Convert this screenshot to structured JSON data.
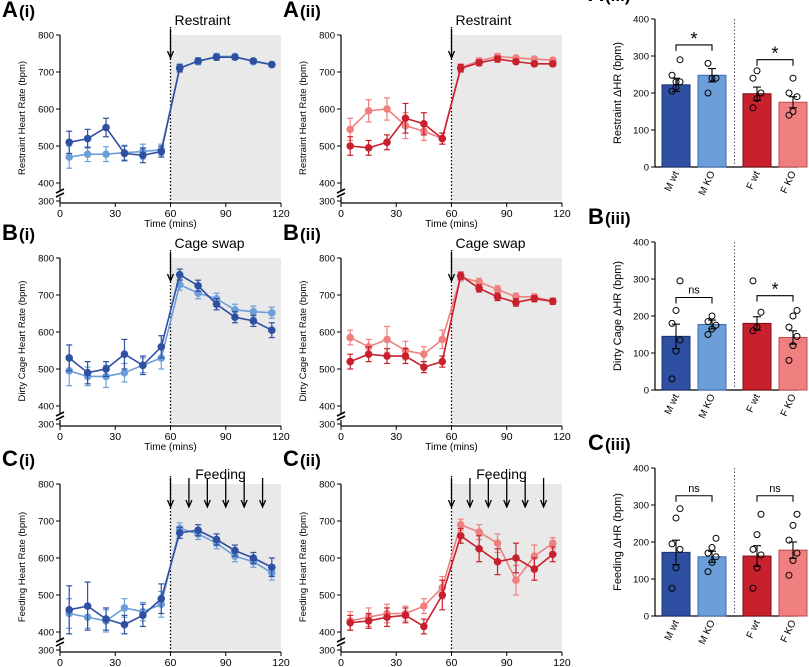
{
  "colors": {
    "male_wt": "#2f4fa2",
    "male_ko": "#6c9fd9",
    "female_wt": "#c8202c",
    "female_ko": "#f08080",
    "shade": "#e9e9e9",
    "wt_edge": "#1a2f6e",
    "fwt_edge": "#7a0f17",
    "fko_edge": "#c04848",
    "mko_edge": "#3c6db5"
  },
  "chart_data": [
    {
      "id": "A(i)",
      "type": "line",
      "label": "A",
      "sub": "(i)",
      "title": "",
      "xlabel": "Time (mins)",
      "ylabel": "Restraint Heart Rate  (bpm)",
      "ylim": [
        300,
        800
      ],
      "xlim": [
        0,
        120
      ],
      "yticks": [
        300,
        400,
        500,
        600,
        700,
        800
      ],
      "xticks": [
        0,
        30,
        60,
        90,
        120
      ],
      "y_break": true,
      "stimulus_label": "Restraint",
      "stimulus_times": [
        60
      ],
      "series": [
        {
          "name": "WT",
          "color": "male_wt",
          "x": [
            5,
            15,
            25,
            35,
            45,
            55,
            65,
            75,
            85,
            95,
            105,
            115
          ],
          "y": [
            510,
            520,
            550,
            480,
            475,
            485,
            710,
            730,
            740,
            740,
            730,
            720
          ],
          "err": [
            30,
            25,
            25,
            20,
            20,
            15,
            10,
            8,
            8,
            6,
            6,
            6
          ]
        },
        {
          "name": "KO",
          "color": "male_ko",
          "x": [
            5,
            15,
            25,
            35,
            45,
            55,
            65,
            75,
            85,
            95,
            105,
            115
          ],
          "y": [
            470,
            478,
            478,
            482,
            485,
            490,
            712,
            728,
            742,
            742,
            728,
            720
          ],
          "err": [
            30,
            20,
            20,
            20,
            20,
            15,
            10,
            8,
            8,
            6,
            6,
            6
          ]
        }
      ]
    },
    {
      "id": "A(ii)",
      "type": "line",
      "label": "A",
      "sub": "(ii)",
      "title": "",
      "xlabel": "Time (mins)",
      "ylabel": "Restraint Heart Rate  (bpm)",
      "ylim": [
        300,
        800
      ],
      "xlim": [
        0,
        120
      ],
      "yticks": [
        300,
        400,
        500,
        600,
        700,
        800
      ],
      "xticks": [
        0,
        30,
        60,
        90,
        120
      ],
      "y_break": true,
      "stimulus_label": "Restraint",
      "stimulus_times": [
        60
      ],
      "series": [
        {
          "name": "WT",
          "color": "female_wt",
          "x": [
            5,
            15,
            25,
            35,
            45,
            55,
            65,
            75,
            85,
            95,
            105,
            115
          ],
          "y": [
            500,
            495,
            510,
            575,
            560,
            520,
            710,
            725,
            735,
            728,
            722,
            722
          ],
          "err": [
            25,
            20,
            20,
            40,
            30,
            15,
            10,
            8,
            8,
            6,
            6,
            6
          ]
        },
        {
          "name": "KO",
          "color": "female_ko",
          "x": [
            5,
            15,
            25,
            35,
            45,
            55,
            65,
            75,
            85,
            95,
            105,
            115
          ],
          "y": [
            545,
            595,
            600,
            555,
            540,
            520,
            712,
            730,
            742,
            738,
            735,
            732
          ],
          "err": [
            30,
            30,
            30,
            35,
            25,
            15,
            10,
            8,
            8,
            6,
            6,
            6
          ]
        }
      ]
    },
    {
      "id": "A(iii)",
      "type": "bar",
      "label": "A",
      "sub": "(iii)",
      "title": "",
      "ylabel": "Restraint ΔHR (bpm)",
      "ylim": [
        0,
        400
      ],
      "yticks": [
        0,
        100,
        200,
        300,
        400
      ],
      "categories": [
        "M wt",
        "M KO",
        "F wt",
        "F KO"
      ],
      "values": [
        222,
        248,
        198,
        175
      ],
      "err": [
        18,
        18,
        18,
        15
      ],
      "bar_colors": [
        "male_wt",
        "male_ko",
        "female_wt",
        "female_ko"
      ],
      "points": [
        [
          205,
          215,
          230,
          248,
          230,
          290
        ],
        [
          200,
          240,
          240,
          280
        ],
        [
          160,
          185,
          200,
          240,
          260
        ],
        [
          140,
          150,
          190,
          200,
          240
        ]
      ],
      "comparisons": [
        {
          "pair": [
            0,
            1
          ],
          "label": "*",
          "y": 330
        },
        {
          "pair": [
            2,
            3
          ],
          "label": "*",
          "y": 290
        }
      ]
    },
    {
      "id": "B(i)",
      "type": "line",
      "label": "B",
      "sub": "(i)",
      "title": "",
      "xlabel": "Time  (mins)",
      "ylabel": "Dirty Cage Heart Rate  (bpm)",
      "ylim": [
        300,
        800
      ],
      "xlim": [
        0,
        120
      ],
      "yticks": [
        300,
        400,
        500,
        600,
        700,
        800
      ],
      "xticks": [
        0,
        30,
        60,
        90,
        120
      ],
      "y_break": true,
      "stimulus_label": "Cage swap",
      "stimulus_times": [
        60
      ],
      "series": [
        {
          "name": "WT",
          "color": "male_wt",
          "x": [
            5,
            15,
            25,
            35,
            45,
            55,
            65,
            75,
            85,
            95,
            105,
            115
          ],
          "y": [
            530,
            490,
            500,
            540,
            510,
            560,
            755,
            725,
            675,
            640,
            630,
            605
          ],
          "err": [
            35,
            30,
            20,
            40,
            25,
            30,
            15,
            15,
            15,
            15,
            15,
            20
          ]
        },
        {
          "name": "KO",
          "color": "male_ko",
          "x": [
            5,
            15,
            25,
            35,
            45,
            55,
            65,
            75,
            85,
            95,
            105,
            115
          ],
          "y": [
            495,
            480,
            480,
            490,
            510,
            530,
            728,
            705,
            690,
            660,
            655,
            652
          ],
          "err": [
            40,
            25,
            30,
            25,
            20,
            30,
            15,
            15,
            15,
            15,
            15,
            15
          ]
        }
      ]
    },
    {
      "id": "B(ii)",
      "type": "line",
      "label": "B",
      "sub": "(ii)",
      "title": "",
      "xlabel": "Time  (mins)",
      "ylabel": "Dirty Cage Heart Rate  (bpm)",
      "ylim": [
        300,
        800
      ],
      "xlim": [
        0,
        120
      ],
      "yticks": [
        300,
        400,
        500,
        600,
        700,
        800
      ],
      "xticks": [
        0,
        30,
        60,
        90,
        120
      ],
      "y_break": true,
      "stimulus_label": "Cage swap",
      "stimulus_times": [
        60
      ],
      "series": [
        {
          "name": "WT",
          "color": "female_wt",
          "x": [
            5,
            15,
            25,
            35,
            45,
            55,
            65,
            75,
            85,
            95,
            105,
            115
          ],
          "y": [
            520,
            540,
            535,
            535,
            505,
            520,
            752,
            718,
            695,
            680,
            690,
            683
          ],
          "err": [
            20,
            20,
            20,
            20,
            15,
            15,
            10,
            10,
            10,
            10,
            8,
            8
          ]
        },
        {
          "name": "KO",
          "color": "female_ko",
          "x": [
            5,
            15,
            25,
            35,
            45,
            55,
            65,
            75,
            85,
            95,
            105,
            115
          ],
          "y": [
            585,
            560,
            580,
            550,
            540,
            580,
            748,
            735,
            715,
            695,
            695,
            683
          ],
          "err": [
            20,
            20,
            35,
            25,
            20,
            25,
            10,
            10,
            10,
            10,
            8,
            8
          ]
        }
      ]
    },
    {
      "id": "B(iii)",
      "type": "bar",
      "label": "B",
      "sub": "(iii)",
      "title": "",
      "ylabel": "Dirty Cage ΔHR (bpm)",
      "ylim": [
        0,
        400
      ],
      "yticks": [
        0,
        100,
        200,
        300,
        400
      ],
      "categories": [
        "M wt",
        "M KO",
        "F wt",
        "F KO"
      ],
      "values": [
        145,
        177,
        180,
        142
      ],
      "err": [
        33,
        12,
        18,
        18
      ],
      "bar_colors": [
        "male_wt",
        "male_ko",
        "female_wt",
        "female_ko"
      ],
      "points": [
        [
          30,
          105,
          135,
          180,
          215,
          295
        ],
        [
          150,
          165,
          175,
          185,
          200
        ],
        [
          160,
          170,
          210,
          295
        ],
        [
          80,
          120,
          145,
          170,
          200,
          215
        ]
      ],
      "comparisons": [
        {
          "pair": [
            0,
            1
          ],
          "label": "ns",
          "y": 250
        },
        {
          "pair": [
            2,
            3
          ],
          "label": "*",
          "y": 255
        }
      ]
    },
    {
      "id": "C(i)",
      "type": "line",
      "label": "C",
      "sub": "(i)",
      "title": "",
      "xlabel": "Time  (mins)",
      "ylabel": "Feeding Heart Rate  (bpm)",
      "ylim": [
        300,
        800
      ],
      "xlim": [
        0,
        120
      ],
      "yticks": [
        300,
        400,
        500,
        600,
        700,
        800
      ],
      "xticks": [
        0,
        30,
        60,
        90,
        120
      ],
      "y_break": true,
      "stimulus_label": "Feeding",
      "stimulus_times": [
        60,
        70,
        80,
        90,
        100,
        110
      ],
      "series": [
        {
          "name": "WT",
          "color": "male_wt",
          "x": [
            5,
            15,
            25,
            35,
            45,
            55,
            65,
            75,
            85,
            95,
            105,
            115
          ],
          "y": [
            460,
            470,
            435,
            420,
            445,
            490,
            668,
            675,
            650,
            620,
            600,
            575
          ],
          "err": [
            65,
            65,
            30,
            25,
            30,
            40,
            15,
            15,
            15,
            15,
            15,
            25
          ]
        },
        {
          "name": "KO",
          "color": "male_ko",
          "x": [
            5,
            15,
            25,
            35,
            45,
            55,
            65,
            75,
            85,
            95,
            105,
            115
          ],
          "y": [
            450,
            440,
            430,
            465,
            455,
            475,
            680,
            665,
            640,
            605,
            590,
            560
          ],
          "err": [
            40,
            30,
            30,
            25,
            25,
            35,
            15,
            15,
            15,
            15,
            15,
            20
          ]
        }
      ]
    },
    {
      "id": "C(ii)",
      "type": "line",
      "label": "C",
      "sub": "(ii)",
      "title": "",
      "xlabel": "Time  (mins)",
      "ylabel": "Feeding Heart Rate  (bpm)",
      "ylim": [
        300,
        800
      ],
      "xlim": [
        0,
        120
      ],
      "yticks": [
        300,
        400,
        500,
        600,
        700,
        800
      ],
      "xticks": [
        0,
        30,
        60,
        90,
        120
      ],
      "y_break": true,
      "stimulus_label": "Feeding",
      "stimulus_times": [
        60,
        70,
        80,
        90,
        100,
        110
      ],
      "series": [
        {
          "name": "WT",
          "color": "female_wt",
          "x": [
            5,
            15,
            25,
            35,
            45,
            55,
            65,
            75,
            85,
            95,
            105,
            115
          ],
          "y": [
            425,
            430,
            440,
            445,
            415,
            500,
            660,
            625,
            590,
            600,
            570,
            610
          ],
          "err": [
            20,
            20,
            25,
            20,
            20,
            40,
            20,
            35,
            35,
            40,
            30,
            20
          ]
        },
        {
          "name": "KO",
          "color": "female_ko",
          "x": [
            5,
            15,
            25,
            35,
            45,
            55,
            65,
            75,
            85,
            95,
            105,
            115
          ],
          "y": [
            430,
            440,
            450,
            450,
            470,
            520,
            690,
            670,
            640,
            540,
            605,
            640
          ],
          "err": [
            25,
            25,
            25,
            20,
            20,
            30,
            15,
            20,
            25,
            40,
            30,
            15
          ]
        }
      ]
    },
    {
      "id": "C(iii)",
      "type": "bar",
      "label": "C",
      "sub": "(iii)",
      "title": "",
      "ylabel": "Feeding ΔHR (bpm)",
      "ylim": [
        0,
        400
      ],
      "yticks": [
        0,
        100,
        200,
        300,
        400
      ],
      "categories": [
        "M wt",
        "M KO",
        "F wt",
        "F KO"
      ],
      "values": [
        172,
        160,
        162,
        178
      ],
      "err": [
        33,
        15,
        28,
        22
      ],
      "bar_colors": [
        "male_wt",
        "male_ko",
        "female_wt",
        "female_ko"
      ],
      "points": [
        [
          75,
          130,
          180,
          195,
          265,
          290
        ],
        [
          120,
          145,
          160,
          170,
          185,
          210
        ],
        [
          75,
          130,
          165,
          180,
          220,
          275
        ],
        [
          110,
          150,
          170,
          205,
          245,
          275
        ]
      ],
      "comparisons": [
        {
          "pair": [
            0,
            1
          ],
          "label": "ns",
          "y": 325
        },
        {
          "pair": [
            2,
            3
          ],
          "label": "ns",
          "y": 325
        }
      ]
    }
  ]
}
